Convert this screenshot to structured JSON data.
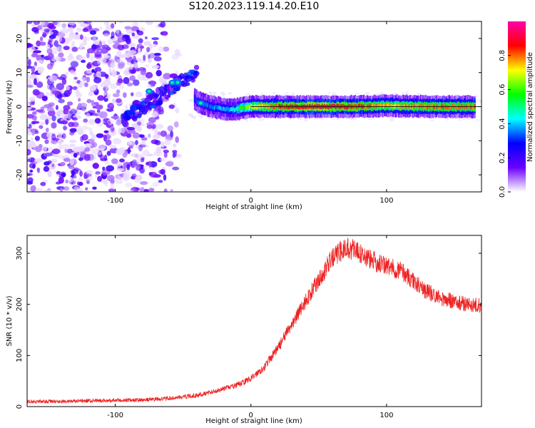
{
  "page": {
    "title": "S120.2023.119.14.20.E10"
  },
  "chart_data": [
    {
      "type": "heatmap",
      "title": "S120.2023.119.14.20.E10",
      "xlabel": "Height of straight line (km)",
      "ylabel": "Frequency (Hz)",
      "xlim": [
        -165,
        170
      ],
      "ylim": [
        -25,
        25
      ],
      "xticks": [
        -100,
        0,
        100
      ],
      "yticks": [
        -20,
        -10,
        0,
        10,
        20
      ],
      "colorbar": {
        "label": "Normalized spectral amplitude",
        "range": [
          0,
          1
        ],
        "ticks": [
          0.0,
          0.2,
          0.4,
          0.6,
          0.8
        ],
        "colormap": [
          "#ffffff",
          "#6a00ff",
          "#0000ff",
          "#00ffff",
          "#00ff00",
          "#ffff00",
          "#ff0000",
          "#ff00aa"
        ]
      },
      "ridge": [
        {
          "x": -75,
          "f": 4.5,
          "a": 0.5
        },
        {
          "x": -55,
          "f": 7.5,
          "a": 0.35
        },
        {
          "x": -40,
          "f": 1.5,
          "a": 0.3
        },
        {
          "x": -30,
          "f": 0.0,
          "a": 0.35
        },
        {
          "x": -15,
          "f": -1.0,
          "a": 0.4
        },
        {
          "x": 0,
          "f": 0.0,
          "a": 0.7
        },
        {
          "x": 25,
          "f": 0.0,
          "a": 0.85
        },
        {
          "x": 50,
          "f": 0.0,
          "a": 0.9
        },
        {
          "x": 75,
          "f": 0.0,
          "a": 0.85
        },
        {
          "x": 100,
          "f": 0.3,
          "a": 0.75
        },
        {
          "x": 130,
          "f": 0.0,
          "a": 0.8
        },
        {
          "x": 165,
          "f": 0.0,
          "a": 0.8
        }
      ],
      "noise_region_x": [
        -165,
        -45
      ]
    },
    {
      "type": "line",
      "xlabel": "Height of straight line (km)",
      "ylabel": "SNR (10 * v/v)",
      "xlim": [
        -165,
        170
      ],
      "ylim": [
        0,
        335
      ],
      "xticks": [
        -100,
        0,
        100
      ],
      "yticks": [
        0,
        100,
        200,
        300
      ],
      "color": "#ee2222",
      "series": [
        {
          "x": [
            -165,
            -140,
            -120,
            -100,
            -80,
            -60,
            -40,
            -30,
            -20,
            -10,
            0,
            10,
            20,
            30,
            40,
            50,
            60,
            70,
            75,
            80,
            90,
            100,
            105,
            110,
            120,
            130,
            140,
            150,
            160,
            170
          ],
          "values": [
            10,
            10,
            11,
            12,
            13,
            16,
            22,
            28,
            35,
            42,
            55,
            78,
            115,
            160,
            205,
            248,
            290,
            312,
            308,
            300,
            285,
            275,
            270,
            268,
            245,
            225,
            212,
            205,
            200,
            198
          ]
        }
      ]
    }
  ]
}
